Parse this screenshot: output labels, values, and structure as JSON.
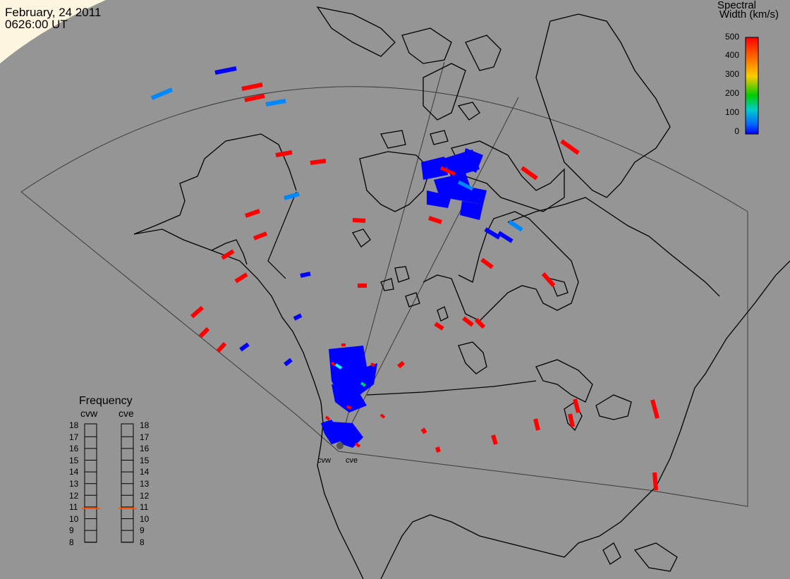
{
  "header": {
    "date": "February, 24 2011",
    "time": "0626:00 UT"
  },
  "colorbar": {
    "title_line1": "Spectral",
    "title_line2": "Width (km/s)",
    "ticks": [
      "500",
      "400",
      "300",
      "200",
      "100",
      "0"
    ],
    "colors": [
      "#ff0000",
      "#ff6600",
      "#ffcc00",
      "#00cc00",
      "#00cccc",
      "#0066ff",
      "#0000ff"
    ]
  },
  "frequency": {
    "title": "Frequency",
    "radars": [
      "cvw",
      "cve"
    ],
    "ticks": [
      "18",
      "17",
      "16",
      "15",
      "14",
      "13",
      "12",
      "11",
      "10",
      "9",
      "8"
    ],
    "selected": {
      "cvw": 10.9,
      "cve": 10.9
    },
    "indicator_color": "#ff5500"
  },
  "stations": {
    "west": "cvw",
    "east": "cve"
  },
  "colors": {
    "background": "#959595",
    "land_outline": "#000000",
    "high_width": "#ff0000",
    "low_width": "#0000ff",
    "mid_width": "#0088ff"
  }
}
